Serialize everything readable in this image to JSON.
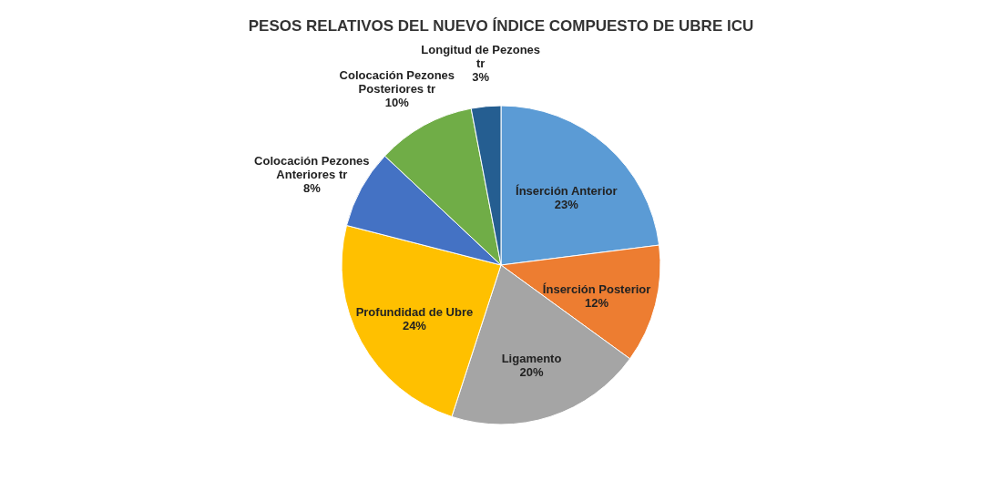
{
  "chart_data": {
    "type": "pie",
    "title": "PESOS RELATIVOS DEL NUEVO ÍNDICE COMPUESTO DE UBRE ICU",
    "categories": [
      "Ínserción Anterior",
      "Ínserción Posterior",
      "Ligamento",
      "Profundidad  de Ubre",
      "Colocación Pezones Anteriores tr",
      "Colocación Pezones Posteriores tr",
      "Longitud de Pezones tr"
    ],
    "values": [
      23,
      12,
      20,
      24,
      8,
      10,
      3
    ],
    "value_labels": [
      "23%",
      "12%",
      "20%",
      "24%",
      "8%",
      "10%",
      "3%"
    ],
    "colors": [
      "#5b9bd5",
      "#ed7d31",
      "#a5a5a5",
      "#ffc000",
      "#4472c4",
      "#70ad47",
      "#255e91"
    ]
  }
}
